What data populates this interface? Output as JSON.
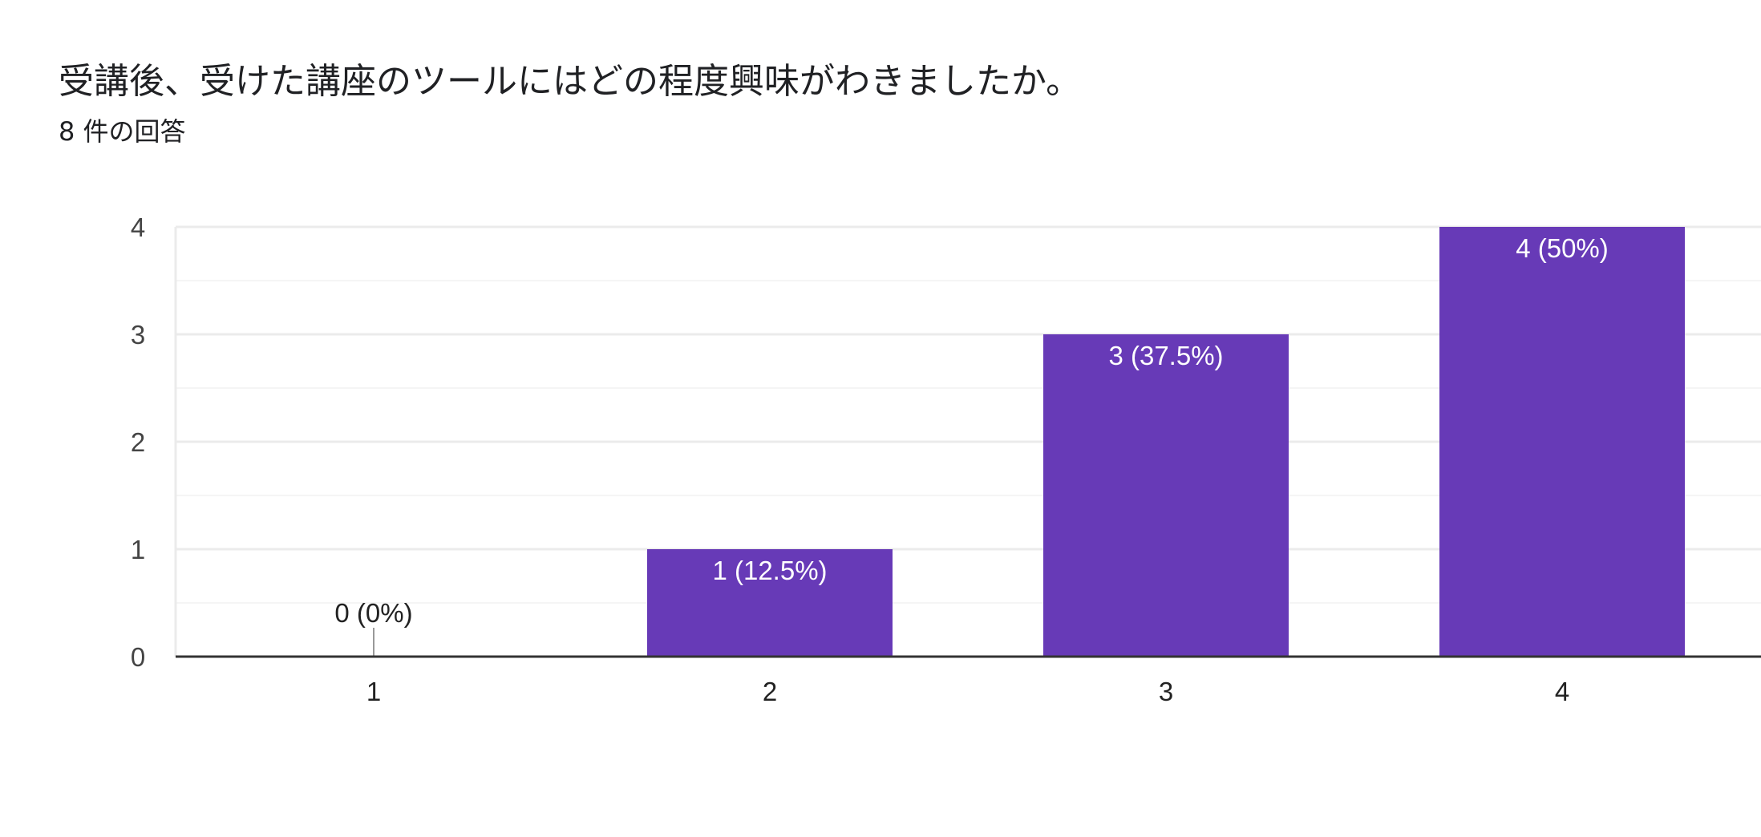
{
  "question": {
    "title": "受講後、受けた講座のツールにはどの程度興味がわきましたか。",
    "response_count": "8 件の回答"
  },
  "colors": {
    "bar": "#673ab7",
    "gridline": "#ebebeb",
    "minor_gridline": "#f5f5f5",
    "axis": "#333333"
  },
  "chart_data": {
    "type": "bar",
    "categories": [
      "1",
      "2",
      "3",
      "4"
    ],
    "values": [
      0,
      1,
      3,
      4
    ],
    "data_labels": [
      "0 (0%)",
      "1 (12.5%)",
      "3 (37.5%)",
      "4 (50%)"
    ],
    "yticks": [
      "0",
      "1",
      "2",
      "3",
      "4"
    ],
    "ylim": [
      0,
      4
    ],
    "xlabel": "",
    "ylabel": "",
    "grid": true,
    "legend": "none"
  }
}
